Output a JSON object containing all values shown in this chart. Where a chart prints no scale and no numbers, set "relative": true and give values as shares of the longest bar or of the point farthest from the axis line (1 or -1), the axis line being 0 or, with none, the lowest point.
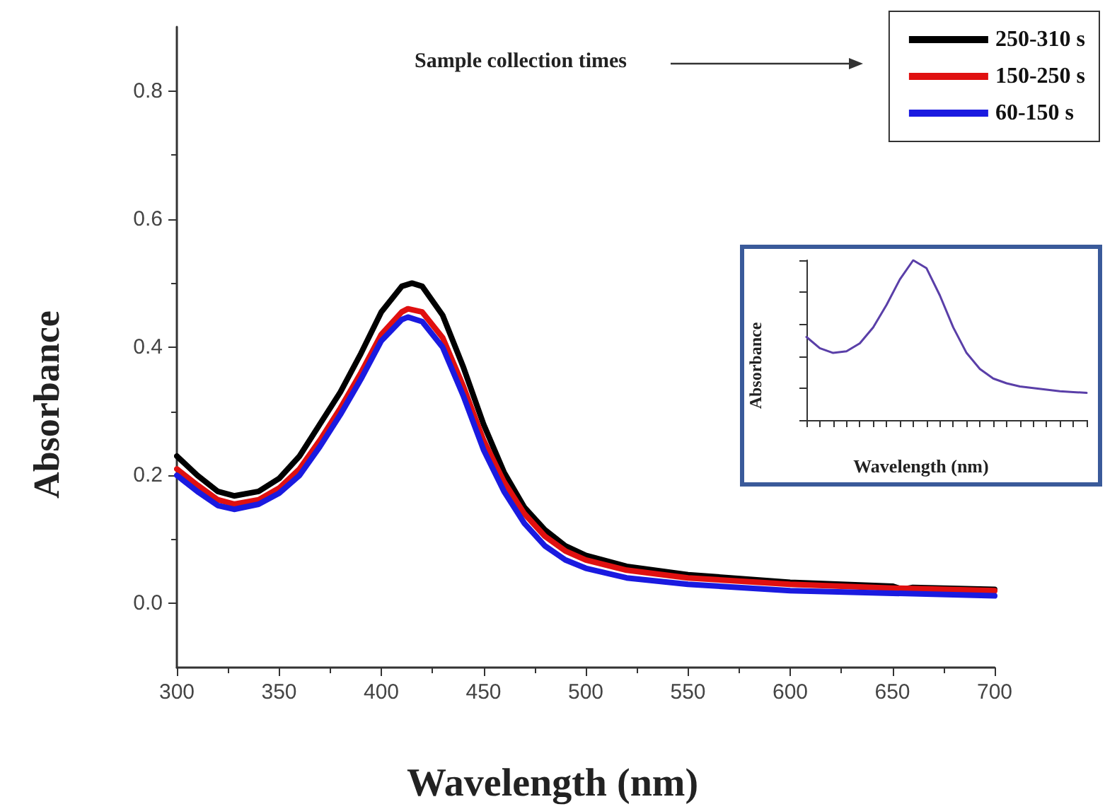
{
  "chart_data": [
    {
      "type": "line",
      "xlabel": "Wavelength (nm)",
      "ylabel": "Absorbance",
      "xlim": [
        300,
        700
      ],
      "xticks": [
        300,
        350,
        400,
        450,
        500,
        550,
        600,
        650,
        700
      ],
      "ylim": [
        -0.1,
        0.9
      ],
      "yticks": [
        {
          "value": 0,
          "label": "0.0"
        },
        {
          "value": 0.2,
          "label": "0.2"
        },
        {
          "value": 0.4,
          "label": "0.4"
        },
        {
          "value": 0.6,
          "label": "0.6"
        },
        {
          "value": 0.8,
          "label": "0.8"
        }
      ],
      "grid": false,
      "legend": "top right",
      "marker": "none",
      "line_style": "solid",
      "annotations": [
        "Sample collection times"
      ],
      "series": [
        {
          "name": "250-310 s",
          "color": "#000000",
          "x": [
            300,
            310,
            320,
            328,
            340,
            350,
            360,
            370,
            380,
            390,
            400,
            410,
            415,
            420,
            430,
            440,
            450,
            460,
            470,
            480,
            490,
            500,
            520,
            550,
            600,
            650,
            655,
            660,
            700
          ],
          "values": [
            0.23,
            0.2,
            0.175,
            0.168,
            0.175,
            0.195,
            0.23,
            0.28,
            0.33,
            0.39,
            0.455,
            0.495,
            0.5,
            0.495,
            0.45,
            0.37,
            0.28,
            0.205,
            0.15,
            0.115,
            0.09,
            0.075,
            0.058,
            0.045,
            0.033,
            0.027,
            0.022,
            0.025,
            0.022
          ]
        },
        {
          "name": "150-250 s",
          "color": "#e01010",
          "x": [
            300,
            310,
            320,
            328,
            340,
            350,
            360,
            370,
            380,
            390,
            400,
            410,
            413,
            420,
            430,
            440,
            450,
            460,
            470,
            480,
            490,
            500,
            520,
            550,
            600,
            650,
            700
          ],
          "values": [
            0.21,
            0.185,
            0.162,
            0.155,
            0.162,
            0.18,
            0.21,
            0.255,
            0.305,
            0.36,
            0.42,
            0.455,
            0.46,
            0.455,
            0.415,
            0.34,
            0.255,
            0.19,
            0.14,
            0.105,
            0.082,
            0.068,
            0.052,
            0.04,
            0.03,
            0.024,
            0.02
          ]
        },
        {
          "name": "60-150 s",
          "color": "#1a1ae0",
          "x": [
            300,
            310,
            320,
            328,
            340,
            350,
            360,
            370,
            380,
            390,
            400,
            410,
            413,
            420,
            430,
            440,
            450,
            460,
            470,
            480,
            490,
            500,
            520,
            550,
            600,
            650,
            700
          ],
          "values": [
            0.2,
            0.175,
            0.153,
            0.147,
            0.155,
            0.172,
            0.2,
            0.245,
            0.295,
            0.35,
            0.41,
            0.443,
            0.447,
            0.44,
            0.4,
            0.325,
            0.24,
            0.175,
            0.125,
            0.09,
            0.068,
            0.055,
            0.04,
            0.03,
            0.02,
            0.016,
            0.012
          ]
        }
      ]
    },
    {
      "type": "line",
      "relative": true,
      "xlabel": "Wavelength (nm)",
      "ylabel": "Absorbance",
      "grid": false,
      "marker": "none",
      "line_style": "solid",
      "categories": [
        null,
        null,
        null,
        null,
        null,
        null,
        null,
        null,
        null,
        null,
        null,
        null,
        null,
        null,
        null,
        null,
        null,
        null,
        null,
        null,
        null,
        null
      ],
      "series": [
        {
          "color": "#5a3fa8",
          "values": [
            0.52,
            0.45,
            0.42,
            0.43,
            0.48,
            0.58,
            0.72,
            0.88,
            1.0,
            0.95,
            0.78,
            0.58,
            0.42,
            0.32,
            0.26,
            0.23,
            0.21,
            0.2,
            0.19,
            0.18,
            0.175,
            0.17
          ]
        }
      ]
    }
  ]
}
